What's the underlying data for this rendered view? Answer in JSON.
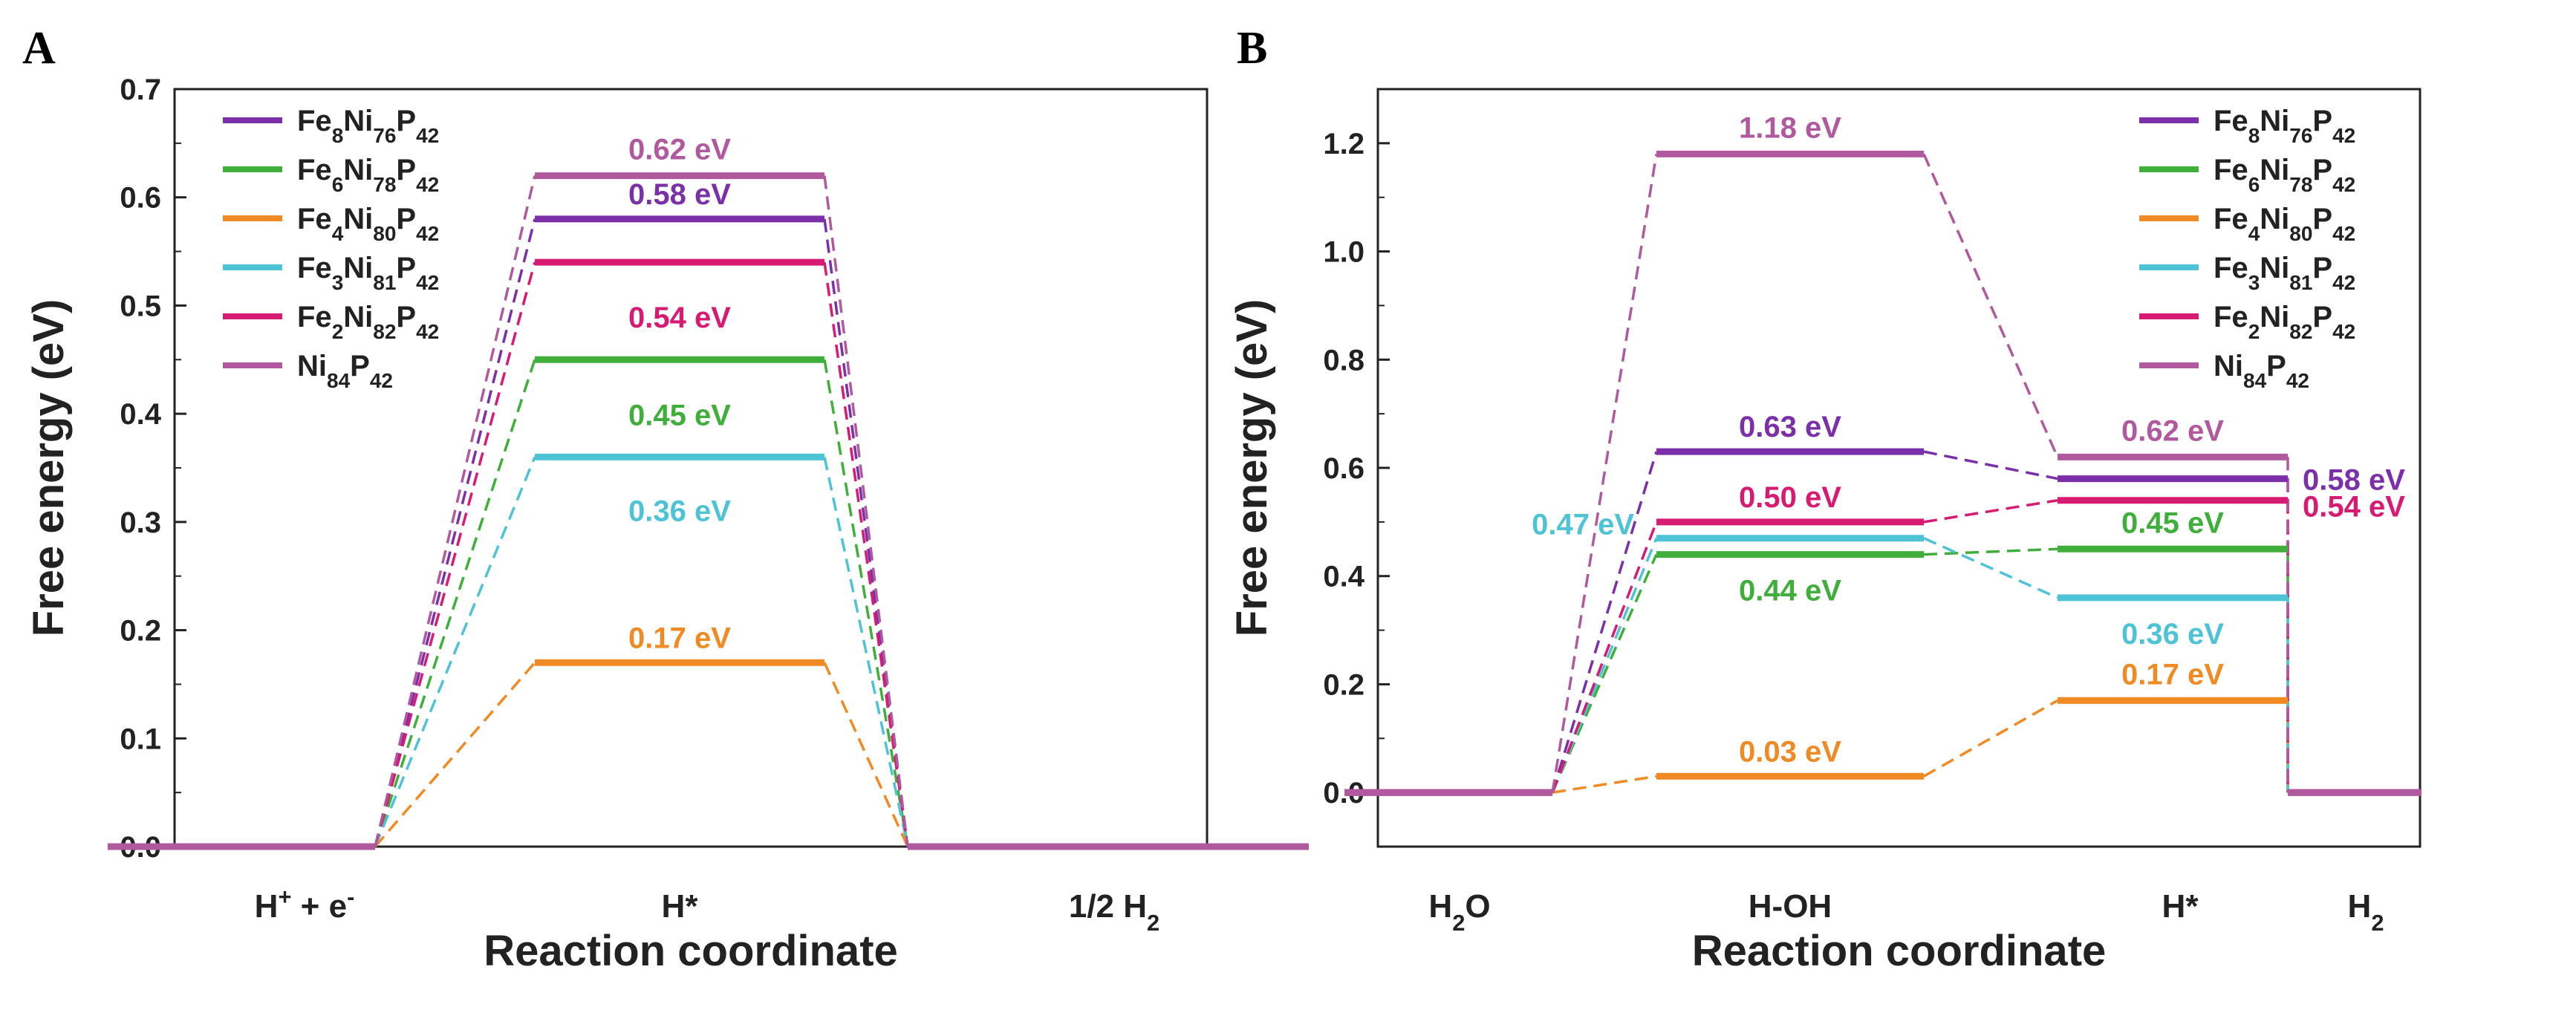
{
  "chart_data": [
    {
      "panel_label": "A",
      "type": "energy_diagram",
      "xlabel": "Reaction coordinate",
      "ylabel": "Free energy (eV)",
      "ylim": [
        0,
        0.7
      ],
      "yticks": [
        "0.0",
        "0.1",
        "0.2",
        "0.3",
        "0.4",
        "0.5",
        "0.6",
        "0.7"
      ],
      "states": [
        {
          "main": "H",
          "sup": "+",
          "mid": " + e",
          "sup2": "-"
        },
        {
          "main": "H*"
        },
        {
          "main": "1/2 H",
          "sub": "2"
        }
      ],
      "series": [
        {
          "name": "Fe8Ni76P42",
          "parts": [
            [
              "Fe",
              ""
            ],
            [
              "8",
              "sub"
            ],
            [
              "Ni",
              ""
            ],
            [
              "76",
              "sub"
            ],
            [
              "P",
              ""
            ],
            [
              "42",
              "sub"
            ]
          ],
          "color": "#7B2FA8",
          "values": [
            0,
            0.58,
            0
          ],
          "labels": [
            null,
            "0.58 eV",
            null
          ]
        },
        {
          "name": "Fe6Ni78P42",
          "parts": [
            [
              "Fe",
              ""
            ],
            [
              "6",
              "sub"
            ],
            [
              "Ni",
              ""
            ],
            [
              "78",
              "sub"
            ],
            [
              "P",
              ""
            ],
            [
              "42",
              "sub"
            ]
          ],
          "color": "#3FAE3A",
          "values": [
            0,
            0.45,
            0
          ],
          "labels": [
            null,
            "0.45 eV",
            null
          ]
        },
        {
          "name": "Fe4Ni80P42",
          "parts": [
            [
              "Fe",
              ""
            ],
            [
              "4",
              "sub"
            ],
            [
              "Ni",
              ""
            ],
            [
              "80",
              "sub"
            ],
            [
              "P",
              ""
            ],
            [
              "42",
              "sub"
            ]
          ],
          "color": "#F08A24",
          "values": [
            0,
            0.17,
            0
          ],
          "labels": [
            null,
            "0.17 eV",
            null
          ]
        },
        {
          "name": "Fe3Ni81P42",
          "parts": [
            [
              "Fe",
              ""
            ],
            [
              "3",
              "sub"
            ],
            [
              "Ni",
              ""
            ],
            [
              "81",
              "sub"
            ],
            [
              "P",
              ""
            ],
            [
              "42",
              "sub"
            ]
          ],
          "color": "#4FC3D6",
          "values": [
            0,
            0.36,
            0
          ],
          "labels": [
            null,
            "0.36 eV",
            null
          ]
        },
        {
          "name": "Fe2Ni82P42",
          "parts": [
            [
              "Fe",
              ""
            ],
            [
              "2",
              "sub"
            ],
            [
              "Ni",
              ""
            ],
            [
              "82",
              "sub"
            ],
            [
              "P",
              ""
            ],
            [
              "42",
              "sub"
            ]
          ],
          "color": "#D81B72",
          "values": [
            0,
            0.54,
            0
          ],
          "labels": [
            null,
            "0.54 eV",
            null
          ]
        },
        {
          "name": "Ni84P42",
          "parts": [
            [
              "Ni",
              ""
            ],
            [
              "84",
              "sub"
            ],
            [
              "P",
              ""
            ],
            [
              "42",
              "sub"
            ]
          ],
          "color": "#B0599E",
          "values": [
            0,
            0.62,
            0
          ],
          "labels": [
            null,
            "0.62 eV",
            null
          ]
        }
      ]
    },
    {
      "panel_label": "B",
      "type": "energy_diagram",
      "xlabel": "Reaction coordinate",
      "ylabel": "Free energy (eV)",
      "ylim": [
        -0.1,
        1.3
      ],
      "yticks": [
        "0.0",
        "0.2",
        "0.4",
        "0.6",
        "0.8",
        "1.0",
        "1.2"
      ],
      "states": [
        {
          "main": "H",
          "sub": "2",
          "tail": "O"
        },
        {
          "main": "H-OH"
        },
        {
          "main": "H*"
        },
        {
          "main": "H",
          "sub": "2"
        }
      ],
      "series": [
        {
          "name": "Fe8Ni76P42",
          "parts": [
            [
              "Fe",
              ""
            ],
            [
              "8",
              "sub"
            ],
            [
              "Ni",
              ""
            ],
            [
              "76",
              "sub"
            ],
            [
              "P",
              ""
            ],
            [
              "42",
              "sub"
            ]
          ],
          "color": "#7B2FA8",
          "values": [
            0,
            0.63,
            0.58,
            0
          ],
          "labels": [
            null,
            "0.63 eV",
            "0.58 eV",
            null
          ]
        },
        {
          "name": "Fe6Ni78P42",
          "parts": [
            [
              "Fe",
              ""
            ],
            [
              "6",
              "sub"
            ],
            [
              "Ni",
              ""
            ],
            [
              "78",
              "sub"
            ],
            [
              "P",
              ""
            ],
            [
              "42",
              "sub"
            ]
          ],
          "color": "#3FAE3A",
          "values": [
            0,
            0.44,
            0.45,
            0
          ],
          "labels": [
            null,
            "0.44 eV",
            "0.45 eV",
            null
          ]
        },
        {
          "name": "Fe4Ni80P42",
          "parts": [
            [
              "Fe",
              ""
            ],
            [
              "4",
              "sub"
            ],
            [
              "Ni",
              ""
            ],
            [
              "80",
              "sub"
            ],
            [
              "P",
              ""
            ],
            [
              "42",
              "sub"
            ]
          ],
          "color": "#F08A24",
          "values": [
            0,
            0.03,
            0.17,
            0
          ],
          "labels": [
            null,
            "0.03 eV",
            "0.17 eV",
            null
          ]
        },
        {
          "name": "Fe3Ni81P42",
          "parts": [
            [
              "Fe",
              ""
            ],
            [
              "3",
              "sub"
            ],
            [
              "Ni",
              ""
            ],
            [
              "81",
              "sub"
            ],
            [
              "P",
              ""
            ],
            [
              "42",
              "sub"
            ]
          ],
          "color": "#4FC3D6",
          "values": [
            0,
            0.47,
            0.36,
            0
          ],
          "labels": [
            null,
            "0.47 eV",
            "0.36 eV",
            null
          ]
        },
        {
          "name": "Fe2Ni82P42",
          "parts": [
            [
              "Fe",
              ""
            ],
            [
              "2",
              "sub"
            ],
            [
              "Ni",
              ""
            ],
            [
              "82",
              "sub"
            ],
            [
              "P",
              ""
            ],
            [
              "42",
              "sub"
            ]
          ],
          "color": "#D81B72",
          "values": [
            0,
            0.5,
            0.54,
            0
          ],
          "labels": [
            null,
            "0.50 eV",
            "0.54 eV",
            null
          ]
        },
        {
          "name": "Ni84P42",
          "parts": [
            [
              "Ni",
              ""
            ],
            [
              "84",
              "sub"
            ],
            [
              "P",
              ""
            ],
            [
              "42",
              "sub"
            ]
          ],
          "color": "#B0599E",
          "values": [
            0,
            1.18,
            0.62,
            0
          ],
          "labels": [
            null,
            "1.18 eV",
            "0.62 eV",
            null
          ]
        }
      ]
    }
  ]
}
